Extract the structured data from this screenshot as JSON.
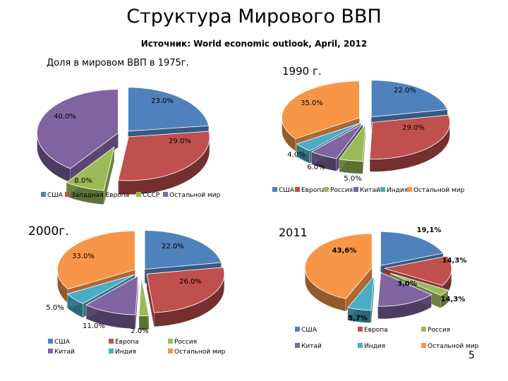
{
  "slide": {
    "title": "Структура Мирового ВВП",
    "source": "Источник: World economic outlook, April, 2012",
    "page_number": "5"
  },
  "chart_data": [
    {
      "type": "pie",
      "title": "Доля в мировом ВВП в 1975г.",
      "categories": [
        "США",
        "Западная Европа",
        "СССР",
        "Остальной мир"
      ],
      "values": [
        23.0,
        29.0,
        8.0,
        40.0
      ],
      "data_labels": [
        "23.0%",
        "29.0%",
        "8.0%",
        "40.0%"
      ],
      "colors": [
        "#4f81bd",
        "#c0504d",
        "#9bbb59",
        "#8064a2"
      ],
      "legend_position": "bottom"
    },
    {
      "type": "pie",
      "title": "1990 г.",
      "categories": [
        "США",
        "Европа",
        "Россия",
        "Китай",
        "Индия",
        "Остальной мир"
      ],
      "values": [
        22.0,
        29.0,
        5.0,
        6.0,
        4.0,
        35.0
      ],
      "data_labels": [
        "22.0%",
        "29.0%",
        "5.0%",
        "6.0%",
        "4.0%",
        "35.0%"
      ],
      "colors": [
        "#4f81bd",
        "#c0504d",
        "#9bbb59",
        "#8064a2",
        "#4bacc6",
        "#f79646"
      ],
      "legend_position": "bottom"
    },
    {
      "type": "pie",
      "title": "2000г.",
      "categories": [
        "США",
        "Европа",
        "Россия",
        "Китай",
        "Индия",
        "Остальной мир"
      ],
      "values": [
        22.0,
        26.0,
        2.0,
        11.0,
        5.0,
        33.0
      ],
      "data_labels": [
        "22.0%",
        "26.0%",
        "2.0%",
        "11.0%",
        "5.0%",
        "33.0%"
      ],
      "colors": [
        "#4f81bd",
        "#c0504d",
        "#9bbb59",
        "#8064a2",
        "#4bacc6",
        "#f79646"
      ],
      "legend_position": "bottom"
    },
    {
      "type": "pie",
      "title": "2011",
      "categories": [
        "США",
        "Европа",
        "Россия",
        "Китай",
        "Индия",
        "Остальной мир"
      ],
      "values": [
        19.1,
        14.3,
        3.0,
        14.3,
        5.7,
        43.6
      ],
      "data_labels": [
        "19,1%",
        "14,3%",
        "3,0%",
        "14,3%",
        "5,7%",
        "43,6%"
      ],
      "colors": [
        "#4f81bd",
        "#c0504d",
        "#9bbb59",
        "#8064a2",
        "#4bacc6",
        "#f79646"
      ],
      "legend_position": "bottom"
    }
  ]
}
